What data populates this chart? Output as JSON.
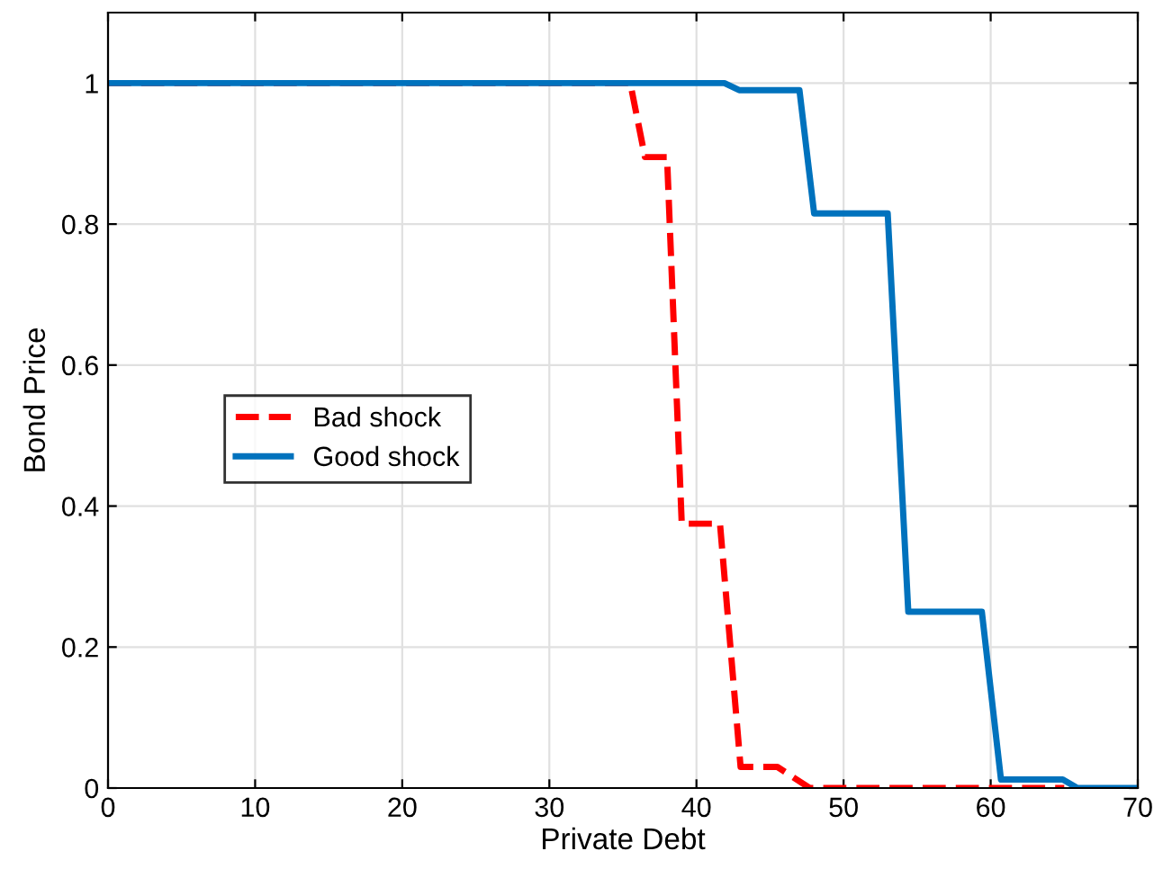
{
  "chart_data": {
    "type": "line",
    "xlabel": "Private Debt",
    "ylabel": "Bond Price",
    "xlim": [
      0,
      70
    ],
    "ylim": [
      0,
      1.1
    ],
    "xticks": [
      0,
      10,
      20,
      30,
      40,
      50,
      60,
      70
    ],
    "yticks": [
      0,
      0.2,
      0.4,
      0.6,
      0.8,
      1
    ],
    "grid": true,
    "legend": "left",
    "marker": "none",
    "series": [
      {
        "name": "Bad shock",
        "color": "#ff0000",
        "line_style": "dashed",
        "x": [
          0,
          35.5,
          36.5,
          38,
          39,
          41.6,
          43,
          45.5,
          47.7,
          65
        ],
        "values": [
          1,
          1,
          0.895,
          0.895,
          0.375,
          0.375,
          0.03,
          0.03,
          0,
          0
        ]
      },
      {
        "name": "Good shock",
        "color": "#0072bd",
        "line_style": "solid",
        "x": [
          0,
          41.9,
          42.9,
          47,
          48,
          53,
          54.4,
          59.4,
          60.7,
          64.9,
          65.9,
          70
        ],
        "values": [
          1,
          1,
          0.99,
          0.99,
          0.815,
          0.815,
          0.25,
          0.25,
          0.012,
          0.012,
          0,
          0
        ]
      }
    ]
  }
}
